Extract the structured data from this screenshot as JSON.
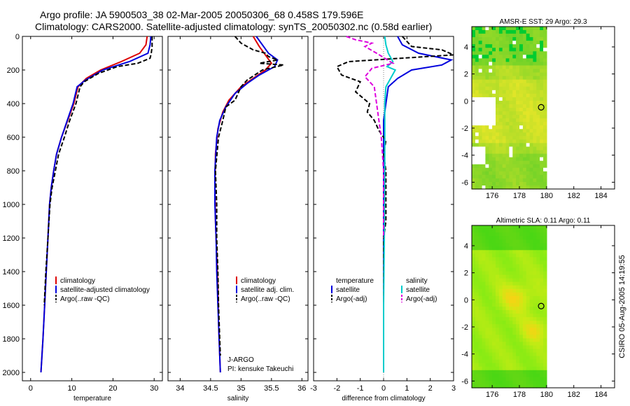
{
  "header": {
    "line1": "Argo profile: JA 5900503_38 02-Mar-2005 20050306_68 0.458S 179.596E",
    "line2": "Climatology: CARS2000. Satellite-adjusted climatology: synTS_20050302.nc (0.58d earlier)"
  },
  "side_label": "CSIRO 05-Aug-2005 14:19:55",
  "chart_data": [
    {
      "id": "temperature",
      "type": "line",
      "xlabel": "temperature",
      "xlim": [
        -2,
        32
      ],
      "xticks": [
        0,
        10,
        20,
        30
      ],
      "xtick_labels": [
        "0",
        "10",
        "20",
        "30"
      ],
      "ylim": [
        2050,
        0
      ],
      "yticks": [
        0,
        200,
        400,
        600,
        800,
        1000,
        1200,
        1400,
        1600,
        1800,
        2000
      ],
      "ytick_labels": [
        "0",
        "200",
        "400",
        "600",
        "800",
        "1000",
        "1200",
        "1400",
        "1600",
        "1800",
        "2000"
      ],
      "legend": [
        {
          "label": "climatology",
          "color": "#dd0000"
        },
        {
          "label": "satellite-adjusted climatology",
          "color": "#0000dd"
        },
        {
          "label": "Argo(..raw -QC)",
          "color": "#000000",
          "dash": true
        }
      ],
      "series": [
        {
          "name": "climatology",
          "color": "#dd0000",
          "dash": false,
          "points": [
            [
              28.3,
              0
            ],
            [
              28.0,
              50
            ],
            [
              26.5,
              100
            ],
            [
              22.0,
              150
            ],
            [
              17.0,
              200
            ],
            [
              13.5,
              250
            ],
            [
              11.5,
              300
            ],
            [
              10.5,
              400
            ],
            [
              9.0,
              500
            ],
            [
              7.5,
              600
            ],
            [
              6.3,
              700
            ],
            [
              5.6,
              800
            ],
            [
              5.0,
              900
            ],
            [
              4.6,
              1000
            ],
            [
              4.2,
              1200
            ],
            [
              3.8,
              1400
            ],
            [
              3.4,
              1600
            ],
            [
              3.0,
              1800
            ],
            [
              2.5,
              2000
            ]
          ]
        },
        {
          "name": "satellite-adjusted",
          "color": "#0000dd",
          "dash": false,
          "points": [
            [
              29.2,
              0
            ],
            [
              29.0,
              50
            ],
            [
              28.5,
              100
            ],
            [
              24.0,
              150
            ],
            [
              17.5,
              200
            ],
            [
              13.3,
              260
            ],
            [
              11.3,
              300
            ],
            [
              10.3,
              400
            ],
            [
              8.9,
              500
            ],
            [
              7.5,
              600
            ],
            [
              6.3,
              700
            ],
            [
              5.6,
              800
            ],
            [
              5.0,
              900
            ],
            [
              4.6,
              1000
            ],
            [
              4.2,
              1200
            ],
            [
              3.8,
              1400
            ],
            [
              3.4,
              1600
            ],
            [
              3.0,
              1800
            ],
            [
              2.5,
              2000
            ]
          ]
        },
        {
          "name": "Argo",
          "color": "#000000",
          "dash": true,
          "points": [
            [
              29.5,
              0
            ],
            [
              29.5,
              60
            ],
            [
              29.3,
              100
            ],
            [
              29.0,
              130
            ],
            [
              26.0,
              160
            ],
            [
              21.0,
              180
            ],
            [
              16.5,
              220
            ],
            [
              13.0,
              270
            ],
            [
              12.0,
              300
            ],
            [
              11.0,
              400
            ],
            [
              9.5,
              500
            ],
            [
              8.2,
              600
            ],
            [
              6.8,
              700
            ],
            [
              6.0,
              800
            ],
            [
              5.2,
              900
            ],
            [
              4.7,
              1000
            ],
            [
              4.2,
              1200
            ],
            [
              3.7,
              1400
            ],
            [
              3.3,
              1600
            ]
          ]
        }
      ]
    },
    {
      "id": "salinity",
      "type": "line",
      "xlabel": "salinity",
      "xlim": [
        33.8,
        36.1
      ],
      "xticks": [
        34,
        34.5,
        35,
        35.5,
        36
      ],
      "xtick_labels": [
        "34",
        "34.5",
        "35",
        "35.5",
        "36"
      ],
      "ylim": [
        2050,
        0
      ],
      "legend": [
        {
          "label": "climatology",
          "color": "#dd0000"
        },
        {
          "label": "satellite adj. clim.",
          "color": "#0000dd"
        },
        {
          "label": "Argo(..raw -QC)",
          "color": "#000000",
          "dash": true
        }
      ],
      "annotation": [
        "J-ARGO",
        "PI: kensuke Takeuchi"
      ],
      "series": [
        {
          "name": "climatology",
          "color": "#dd0000",
          "dash": false,
          "points": [
            [
              35.2,
              0
            ],
            [
              35.3,
              60
            ],
            [
              35.4,
              110
            ],
            [
              35.5,
              160
            ],
            [
              35.4,
              200
            ],
            [
              35.2,
              250
            ],
            [
              35.0,
              300
            ],
            [
              34.8,
              380
            ],
            [
              34.7,
              450
            ],
            [
              34.62,
              550
            ],
            [
              34.58,
              700
            ],
            [
              34.57,
              900
            ],
            [
              34.58,
              1100
            ],
            [
              34.6,
              1300
            ],
            [
              34.62,
              1500
            ],
            [
              34.63,
              1700
            ],
            [
              34.65,
              1900
            ],
            [
              34.66,
              2000
            ]
          ]
        },
        {
          "name": "satellite-adjusted",
          "color": "#0000dd",
          "dash": false,
          "points": [
            [
              35.25,
              0
            ],
            [
              35.35,
              50
            ],
            [
              35.45,
              100
            ],
            [
              35.6,
              140
            ],
            [
              35.55,
              180
            ],
            [
              35.3,
              230
            ],
            [
              35.1,
              280
            ],
            [
              34.9,
              340
            ],
            [
              34.75,
              420
            ],
            [
              34.65,
              500
            ],
            [
              34.6,
              600
            ],
            [
              34.57,
              800
            ],
            [
              34.57,
              1000
            ],
            [
              34.59,
              1200
            ],
            [
              34.6,
              1400
            ],
            [
              34.62,
              1600
            ],
            [
              34.64,
              1800
            ],
            [
              34.66,
              2000
            ]
          ]
        },
        {
          "name": "Argo",
          "color": "#000000",
          "dash": true,
          "points": [
            [
              34.9,
              0
            ],
            [
              35.0,
              40
            ],
            [
              35.2,
              80
            ],
            [
              35.4,
              100
            ],
            [
              35.45,
              120
            ],
            [
              35.6,
              140
            ],
            [
              35.3,
              160
            ],
            [
              35.7,
              170
            ],
            [
              35.35,
              200
            ],
            [
              35.1,
              260
            ],
            [
              35.0,
              300
            ],
            [
              34.9,
              380
            ],
            [
              34.75,
              420
            ],
            [
              34.7,
              500
            ],
            [
              34.63,
              600
            ],
            [
              34.58,
              800
            ],
            [
              34.6,
              1000
            ],
            [
              34.6,
              1200
            ],
            [
              34.62,
              1400
            ],
            [
              34.63,
              1600
            ],
            [
              34.65,
              1800
            ],
            [
              34.66,
              1900
            ]
          ]
        }
      ]
    },
    {
      "id": "difference",
      "type": "line",
      "xlabel": "difference from climatology",
      "xlim": [
        -3,
        3
      ],
      "xticks": [
        -3,
        -2,
        -1,
        0,
        1,
        2,
        3
      ],
      "xtick_labels": [
        "-3",
        "-2",
        "-1",
        "0",
        "1",
        "2",
        "3"
      ],
      "ylim": [
        2050,
        0
      ],
      "legend_left_title": "temperature",
      "legend_left": [
        {
          "label": "satellite",
          "color": "#0000dd"
        },
        {
          "label": "Argo(-adj)",
          "color": "#000000",
          "dash": true
        }
      ],
      "legend_right_title": "salinity",
      "legend_right": [
        {
          "label": "satellite",
          "color": "#00cccc"
        },
        {
          "label": "Argo(-adj)",
          "color": "#dd00dd",
          "dash": true
        }
      ],
      "series": [
        {
          "name": "temp satellite",
          "color": "#0000dd",
          "dash": false,
          "points": [
            [
              0.6,
              0
            ],
            [
              0.8,
              50
            ],
            [
              1.5,
              100
            ],
            [
              2.9,
              140
            ],
            [
              2.5,
              170
            ],
            [
              1.2,
              200
            ],
            [
              0.6,
              250
            ],
            [
              0.2,
              300
            ],
            [
              0.1,
              400
            ],
            [
              0.0,
              500
            ],
            [
              0.0,
              800
            ],
            [
              0.0,
              1200
            ],
            [
              0.0,
              2000
            ]
          ]
        },
        {
          "name": "temp Argo",
          "color": "#000000",
          "dash": true,
          "points": [
            [
              0.8,
              0
            ],
            [
              1.2,
              60
            ],
            [
              2.5,
              80
            ],
            [
              3.0,
              110
            ],
            [
              -1.5,
              150
            ],
            [
              -2.0,
              180
            ],
            [
              -1.8,
              230
            ],
            [
              -1.0,
              270
            ],
            [
              -1.2,
              330
            ],
            [
              -0.6,
              400
            ],
            [
              -0.7,
              450
            ],
            [
              -0.4,
              500
            ],
            [
              -0.2,
              560
            ],
            [
              0.1,
              620
            ],
            [
              0.0,
              700
            ],
            [
              0.1,
              800
            ],
            [
              0.1,
              1000
            ],
            [
              0.1,
              1100
            ],
            [
              0.0,
              1200
            ],
            [
              0.0,
              1600
            ]
          ]
        },
        {
          "name": "sal satellite",
          "color": "#00cccc",
          "dash": false,
          "points": [
            [
              0.05,
              0
            ],
            [
              0.1,
              50
            ],
            [
              0.2,
              100
            ],
            [
              0.4,
              150
            ],
            [
              0.15,
              180
            ],
            [
              0.5,
              200
            ],
            [
              0.3,
              250
            ],
            [
              0.1,
              300
            ],
            [
              0.05,
              400
            ],
            [
              0.05,
              600
            ],
            [
              0.05,
              800
            ],
            [
              0.03,
              1200
            ],
            [
              0.0,
              1600
            ],
            [
              0.0,
              2000
            ]
          ]
        },
        {
          "name": "sal Argo",
          "color": "#dd00dd",
          "dash": true,
          "points": [
            [
              -1.6,
              0
            ],
            [
              -1.2,
              20
            ],
            [
              -0.5,
              40
            ],
            [
              -0.8,
              60
            ],
            [
              -0.3,
              100
            ],
            [
              0.4,
              160
            ],
            [
              -0.5,
              190
            ],
            [
              -0.8,
              240
            ],
            [
              -0.4,
              300
            ],
            [
              -0.3,
              400
            ],
            [
              -0.2,
              500
            ],
            [
              -0.1,
              600
            ],
            [
              0.0,
              800
            ],
            [
              0.0,
              1200
            ]
          ]
        }
      ]
    },
    {
      "id": "sst_map",
      "type": "heatmap",
      "title": "AMSR-E SST: 29  Argo: 29.3",
      "xlim": [
        174.5,
        185
      ],
      "ylim": [
        -6.5,
        5.5
      ],
      "xticks": [
        176,
        178,
        180,
        182,
        184
      ],
      "xtick_labels": [
        "176",
        "178",
        "180",
        "182",
        "184"
      ],
      "yticks": [
        -6,
        -4,
        -2,
        0,
        2,
        4
      ],
      "ytick_labels": [
        "-6",
        "-4",
        "-2",
        "0",
        "2",
        "4"
      ],
      "data_lon": [
        174.5,
        180.0
      ],
      "marker": {
        "lon": 179.6,
        "lat": -0.46
      }
    },
    {
      "id": "sla_map",
      "type": "heatmap",
      "title": "Altimetric SLA: 0.11  Argo: 0.11",
      "xlim": [
        174.5,
        185
      ],
      "ylim": [
        -6.5,
        5.5
      ],
      "xticks": [
        176,
        178,
        180,
        182,
        184
      ],
      "xtick_labels": [
        "176",
        "178",
        "180",
        "182",
        "184"
      ],
      "yticks": [
        -6,
        -4,
        -2,
        0,
        2,
        4
      ],
      "ytick_labels": [
        "-6",
        "-4",
        "-2",
        "0",
        "2",
        "4"
      ],
      "data_lon": [
        174.5,
        180.0
      ],
      "marker": {
        "lon": 179.6,
        "lat": -0.46
      }
    }
  ]
}
